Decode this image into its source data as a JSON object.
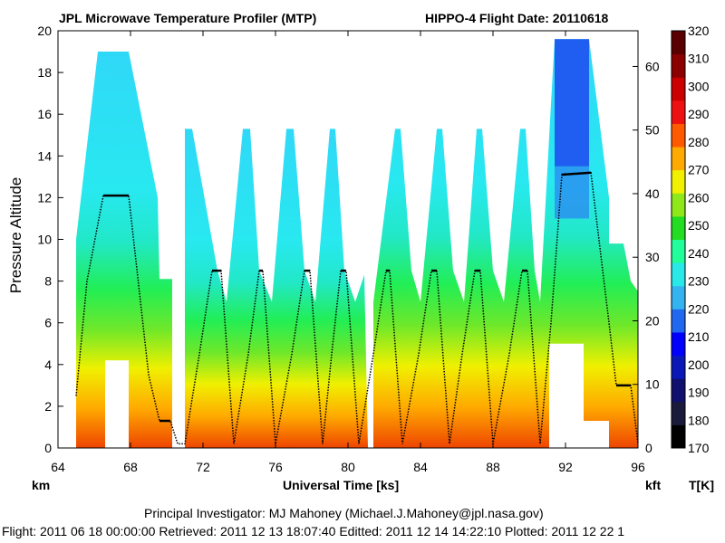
{
  "header": {
    "title": "JPL Microwave Temperature Profiler (MTP)",
    "flight_info": "HIPPO-4  Flight Date: 20110618"
  },
  "axes": {
    "left_label": "Pressure Altitude",
    "left_unit": "km",
    "x_label": "Universal Time [ks]",
    "right_unit": "kft",
    "colorbar_unit": "T[K]"
  },
  "footer": {
    "investigator": "Principal Investigator: MJ Mahoney (Michael.J.Mahoney@jpl.nasa.gov)",
    "timestamps": "Flight: 2011 06 18 00:00:00   Retrieved: 2011 12 13 18:07:40   Editted: 2011 12 14 14:22:10   Plotted: 2011 12 22 1"
  },
  "chart_data": {
    "type": "heatmap",
    "title": "JPL Microwave Temperature Profiler (MTP)",
    "xlabel": "Universal Time [ks]",
    "ylabel": "Pressure Altitude",
    "xlim": [
      64,
      96
    ],
    "ylim": [
      0,
      20
    ],
    "x_ticks": [
      64,
      68,
      72,
      76,
      80,
      84,
      88,
      92,
      96
    ],
    "y_ticks": [
      0,
      2,
      4,
      6,
      8,
      10,
      12,
      14,
      16,
      18,
      20
    ],
    "y2_ticks": [
      0,
      10,
      20,
      30,
      40,
      50,
      60
    ],
    "colorbar_ticks": [
      170,
      180,
      190,
      200,
      210,
      220,
      230,
      240,
      250,
      260,
      270,
      280,
      290,
      300,
      310,
      320
    ],
    "colorbar_colors": [
      "#000000",
      "#1a1a3a",
      "#10106e",
      "#0a18b8",
      "#0000ff",
      "#2068f0",
      "#33b4f0",
      "#28e8e8",
      "#22ff9a",
      "#22dd22",
      "#8ee81a",
      "#f0f000",
      "#ffaa00",
      "#ff5a00",
      "#ee1111",
      "#cc0000",
      "#8c0000",
      "#5a0000"
    ],
    "flight_altitude_km": [
      [
        65.0,
        2.5
      ],
      [
        65.6,
        8.0
      ],
      [
        66.5,
        12.1
      ],
      [
        67.9,
        12.1
      ],
      [
        69.0,
        3.5
      ],
      [
        69.6,
        1.3
      ],
      [
        70.2,
        1.3
      ],
      [
        70.6,
        0.2
      ],
      [
        71.0,
        0.2
      ],
      [
        71.8,
        4.5
      ],
      [
        72.5,
        8.5
      ],
      [
        73.0,
        8.5
      ],
      [
        73.7,
        0.2
      ],
      [
        74.5,
        4.5
      ],
      [
        75.1,
        8.5
      ],
      [
        75.3,
        8.5
      ],
      [
        76.0,
        0.2
      ],
      [
        76.9,
        4.5
      ],
      [
        77.6,
        8.5
      ],
      [
        77.9,
        8.5
      ],
      [
        78.6,
        0.2
      ],
      [
        79.1,
        4.5
      ],
      [
        79.6,
        8.5
      ],
      [
        79.9,
        8.5
      ],
      [
        80.6,
        0.2
      ],
      [
        81.4,
        4.5
      ],
      [
        82.1,
        8.5
      ],
      [
        82.3,
        8.5
      ],
      [
        83.0,
        0.2
      ],
      [
        83.9,
        4.5
      ],
      [
        84.6,
        8.5
      ],
      [
        84.9,
        8.5
      ],
      [
        85.6,
        0.2
      ],
      [
        86.3,
        4.5
      ],
      [
        87.0,
        8.5
      ],
      [
        87.3,
        8.5
      ],
      [
        88.0,
        0.2
      ],
      [
        88.9,
        4.5
      ],
      [
        89.6,
        8.5
      ],
      [
        89.9,
        8.5
      ],
      [
        90.6,
        0.2
      ],
      [
        91.2,
        6.0
      ],
      [
        91.8,
        13.1
      ],
      [
        93.4,
        13.2
      ],
      [
        94.4,
        6.0
      ],
      [
        94.8,
        3.0
      ],
      [
        95.6,
        3.0
      ],
      [
        96.0,
        0.2
      ]
    ]
  }
}
